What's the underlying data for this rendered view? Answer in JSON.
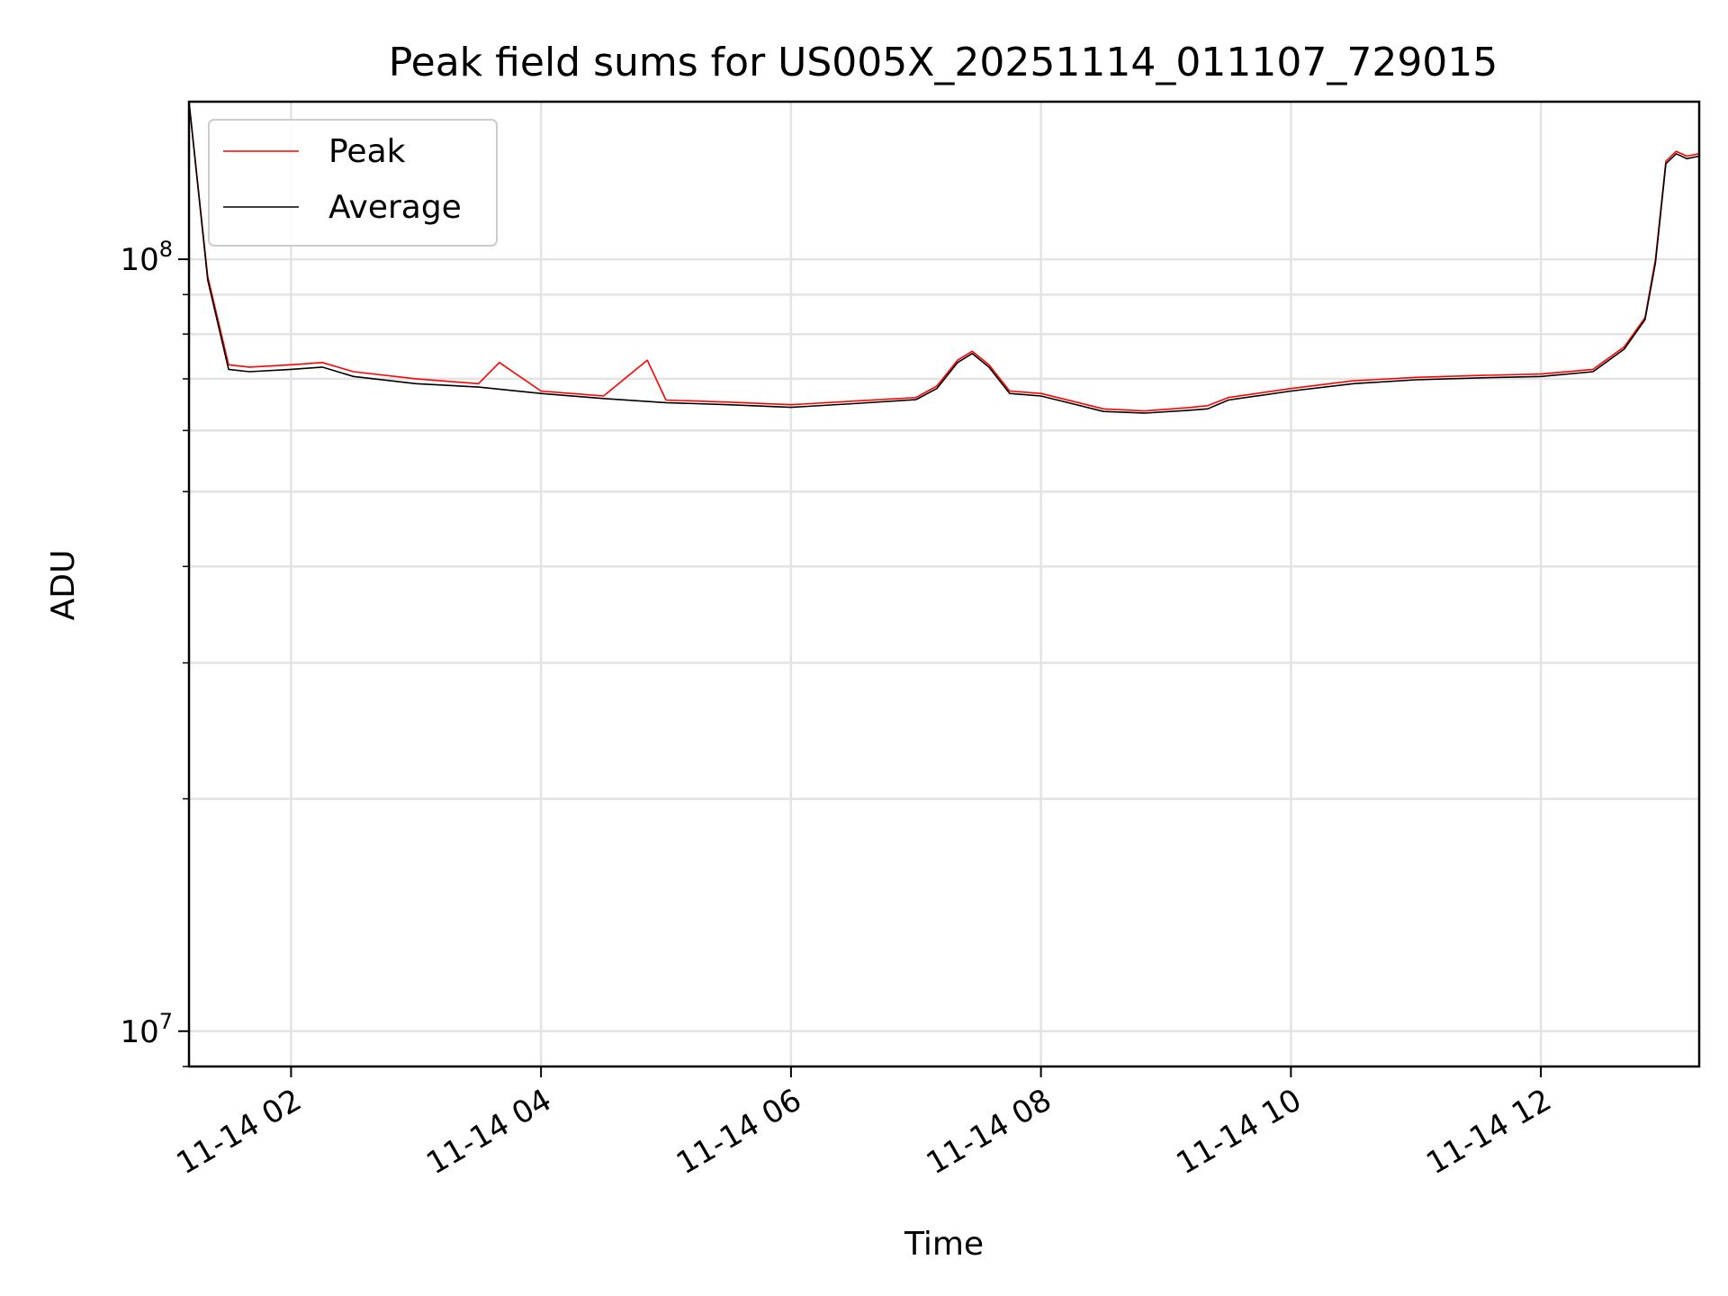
{
  "chart_data": {
    "type": "line",
    "title": "Peak field sums for US005X_20251114_011107_729015",
    "xlabel": "Time",
    "ylabel": "ADU",
    "yscale": "log",
    "grid": true,
    "legend_position": "top-left",
    "xlim": [
      "2025-11-14 01:11",
      "2025-11-14 13:16"
    ],
    "ylim": [
      9000000,
      160000000
    ],
    "x_ticks": [
      "11-14 02",
      "11-14 04",
      "11-14 06",
      "11-14 08",
      "11-14 10",
      "11-14 12"
    ],
    "x_tick_times": [
      "2025-11-14 02:00",
      "2025-11-14 04:00",
      "2025-11-14 06:00",
      "2025-11-14 08:00",
      "2025-11-14 10:00",
      "2025-11-14 12:00"
    ],
    "y_ticks": [
      {
        "value": 100000000,
        "base": "10",
        "exp": "8"
      },
      {
        "value": 10000000,
        "base": "10",
        "exp": "7"
      }
    ],
    "series": [
      {
        "name": "Peak",
        "color": "#ff0000",
        "x": [
          "2025-11-14 01:11",
          "2025-11-14 01:20",
          "2025-11-14 01:30",
          "2025-11-14 01:40",
          "2025-11-14 02:00",
          "2025-11-14 02:15",
          "2025-11-14 02:30",
          "2025-11-14 03:00",
          "2025-11-14 03:30",
          "2025-11-14 03:40",
          "2025-11-14 04:00",
          "2025-11-14 04:30",
          "2025-11-14 04:51",
          "2025-11-14 05:00",
          "2025-11-14 05:30",
          "2025-11-14 06:00",
          "2025-11-14 06:30",
          "2025-11-14 07:00",
          "2025-11-14 07:10",
          "2025-11-14 07:20",
          "2025-11-14 07:27",
          "2025-11-14 07:35",
          "2025-11-14 07:45",
          "2025-11-14 08:00",
          "2025-11-14 08:15",
          "2025-11-14 08:30",
          "2025-11-14 08:50",
          "2025-11-14 09:10",
          "2025-11-14 09:20",
          "2025-11-14 09:30",
          "2025-11-14 10:00",
          "2025-11-14 10:30",
          "2025-11-14 11:00",
          "2025-11-14 11:30",
          "2025-11-14 12:00",
          "2025-11-14 12:25",
          "2025-11-14 12:40",
          "2025-11-14 12:50",
          "2025-11-14 12:55",
          "2025-11-14 13:00",
          "2025-11-14 13:05",
          "2025-11-14 13:10",
          "2025-11-14 13:16"
        ],
        "values": [
          160000000,
          95000000,
          73000000,
          72500000,
          73000000,
          73500000,
          71500000,
          70000000,
          69000000,
          73500000,
          67500000,
          66500000,
          74000000,
          65700000,
          65300000,
          64800000,
          65500000,
          66200000,
          68500000,
          74000000,
          76000000,
          73000000,
          67500000,
          67000000,
          65500000,
          64000000,
          63600000,
          64200000,
          64600000,
          66200000,
          68000000,
          69600000,
          70300000,
          70700000,
          71000000,
          72000000,
          77000000,
          84000000,
          100000000,
          134000000,
          138000000,
          136000000,
          137000000
        ]
      },
      {
        "name": "Average",
        "color": "#000000",
        "x": [
          "2025-11-14 01:11",
          "2025-11-14 01:20",
          "2025-11-14 01:30",
          "2025-11-14 01:40",
          "2025-11-14 02:00",
          "2025-11-14 02:15",
          "2025-11-14 02:30",
          "2025-11-14 03:00",
          "2025-11-14 03:30",
          "2025-11-14 04:00",
          "2025-11-14 04:30",
          "2025-11-14 05:00",
          "2025-11-14 05:30",
          "2025-11-14 06:00",
          "2025-11-14 06:30",
          "2025-11-14 07:00",
          "2025-11-14 07:10",
          "2025-11-14 07:20",
          "2025-11-14 07:27",
          "2025-11-14 07:35",
          "2025-11-14 07:45",
          "2025-11-14 08:00",
          "2025-11-14 08:15",
          "2025-11-14 08:30",
          "2025-11-14 08:50",
          "2025-11-14 09:10",
          "2025-11-14 09:20",
          "2025-11-14 09:30",
          "2025-11-14 10:00",
          "2025-11-14 10:30",
          "2025-11-14 11:00",
          "2025-11-14 11:30",
          "2025-11-14 12:00",
          "2025-11-14 12:25",
          "2025-11-14 12:40",
          "2025-11-14 12:50",
          "2025-11-14 12:55",
          "2025-11-14 13:00",
          "2025-11-14 13:05",
          "2025-11-14 13:10",
          "2025-11-14 13:16"
        ],
        "values": [
          160000000,
          94000000,
          72000000,
          71500000,
          72000000,
          72500000,
          70500000,
          69000000,
          68300000,
          67000000,
          66000000,
          65200000,
          64800000,
          64300000,
          65000000,
          65800000,
          68000000,
          73500000,
          75500000,
          72500000,
          67000000,
          66500000,
          65000000,
          63500000,
          63200000,
          63700000,
          64000000,
          65700000,
          67500000,
          69000000,
          69800000,
          70200000,
          70500000,
          71500000,
          76500000,
          83500000,
          99000000,
          133000000,
          137000000,
          135000000,
          136000000
        ]
      }
    ]
  }
}
